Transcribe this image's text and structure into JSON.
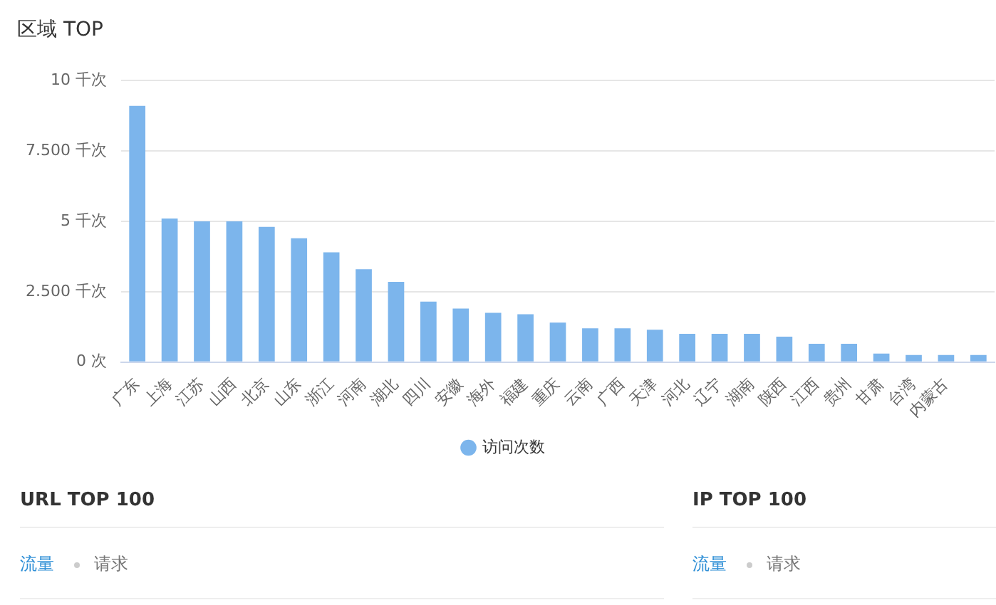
{
  "chart_data": {
    "type": "bar",
    "title": "区域 TOP",
    "categories": [
      "广东",
      "上海",
      "江苏",
      "山西",
      "北京",
      "山东",
      "浙江",
      "河南",
      "湖北",
      "四川",
      "安徽",
      "海外",
      "福建",
      "重庆",
      "云南",
      "广西",
      "天津",
      "河北",
      "辽宁",
      "湖南",
      "陕西",
      "江西",
      "贵州",
      "甘肃",
      "台湾",
      "内蒙古",
      null
    ],
    "series": [
      {
        "name": "访问次数",
        "color": "#7cb5ec",
        "values": [
          9.1,
          5.1,
          5.0,
          5.0,
          4.8,
          4.4,
          3.9,
          3.3,
          2.85,
          2.15,
          1.9,
          1.75,
          1.7,
          1.4,
          1.2,
          1.2,
          1.15,
          1.0,
          1.0,
          1.0,
          0.9,
          0.65,
          0.65,
          0.3,
          0.25,
          0.25,
          0.25
        ]
      }
    ],
    "ylim": [
      0,
      10
    ],
    "yticks": [
      {
        "value": 0,
        "label": "0 次"
      },
      {
        "value": 2.5,
        "label": "2.500 千次"
      },
      {
        "value": 5,
        "label": "5 千次"
      },
      {
        "value": 7.5,
        "label": "7.500 千次"
      },
      {
        "value": 10,
        "label": "10 千次"
      }
    ],
    "grid": "y",
    "legend": "bottom",
    "annotations": [
      "URL TOP 100",
      "流量",
      "请求",
      "IP TOP 100",
      "流量",
      "请求"
    ]
  }
}
